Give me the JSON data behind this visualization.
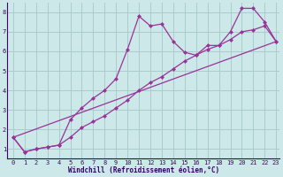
{
  "xlabel": "Windchill (Refroidissement éolien,°C)",
  "background_color": "#cce8e8",
  "grid_color": "#aacccc",
  "line_color": "#993399",
  "xlim": [
    -0.5,
    23.3
  ],
  "ylim": [
    0.5,
    8.5
  ],
  "xticks": [
    0,
    1,
    2,
    3,
    4,
    5,
    6,
    7,
    8,
    9,
    10,
    11,
    12,
    13,
    14,
    15,
    16,
    17,
    18,
    19,
    20,
    21,
    22,
    23
  ],
  "yticks": [
    1,
    2,
    3,
    4,
    5,
    6,
    7,
    8
  ],
  "line1_x": [
    0,
    1,
    2,
    3,
    4,
    5,
    6,
    7,
    8,
    9,
    10,
    11,
    12,
    13,
    14,
    15,
    16,
    17,
    18,
    19,
    20,
    21,
    22,
    23
  ],
  "line1_y": [
    1.6,
    0.85,
    1.0,
    1.1,
    1.2,
    2.5,
    3.1,
    3.6,
    4.0,
    4.6,
    6.1,
    7.8,
    7.3,
    7.4,
    6.5,
    5.95,
    5.8,
    6.3,
    6.3,
    7.0,
    8.2,
    8.2,
    7.5,
    6.5
  ],
  "line2_x": [
    0,
    1,
    2,
    3,
    4,
    5,
    6,
    7,
    8,
    9,
    10,
    11,
    12,
    13,
    14,
    15,
    16,
    17,
    18,
    19,
    20,
    21,
    22,
    23
  ],
  "line2_y": [
    1.6,
    0.85,
    1.0,
    1.1,
    1.2,
    1.6,
    2.1,
    2.4,
    2.7,
    3.1,
    3.5,
    4.0,
    4.4,
    4.7,
    5.1,
    5.5,
    5.8,
    6.1,
    6.3,
    6.6,
    7.0,
    7.1,
    7.3,
    6.5
  ],
  "line3_x": [
    0,
    23
  ],
  "line3_y": [
    1.6,
    6.5
  ]
}
